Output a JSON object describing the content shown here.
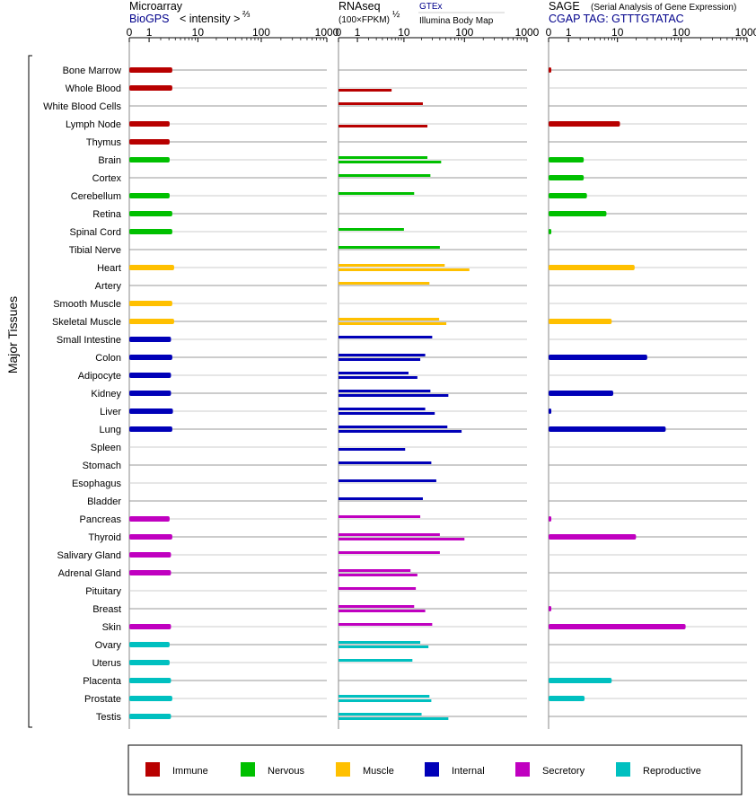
{
  "headers": {
    "microarray": "Microarray",
    "biogps": "BioGPS",
    "intensity": "< intensity >",
    "intensity_exp": "⅔",
    "rnaseq": "RNAseq",
    "fpkm": "(100×FPKM)",
    "fpkm_exp": "½",
    "gtex": "GTEx",
    "illumina": "Illumina Body Map",
    "sage": "SAGE",
    "sage_desc": "(Serial Analysis of Gene Expression)",
    "cgap": "CGAP TAG: GTTTGTATAC"
  },
  "y_axis_label": "Major Tissues",
  "axis_ticks": [
    {
      "label": "0",
      "value": 0
    },
    {
      "label": "1",
      "value": 1
    },
    {
      "label": "10",
      "value": 10
    },
    {
      "label": "100",
      "value": 100
    },
    {
      "label": "1000",
      "value": 1000
    }
  ],
  "legend": [
    {
      "key": "immune",
      "label": "Immune",
      "color": "#b80000"
    },
    {
      "key": "nervous",
      "label": "Nervous",
      "color": "#00c000"
    },
    {
      "key": "muscle",
      "label": "Muscle",
      "color": "#ffc000"
    },
    {
      "key": "internal",
      "label": "Internal",
      "color": "#0000b8"
    },
    {
      "key": "secretory",
      "label": "Secretory",
      "color": "#c000c0"
    },
    {
      "key": "reproductive",
      "label": "Reproductive",
      "color": "#00c0c0"
    }
  ],
  "chart_data": {
    "type": "bar",
    "orientation": "horizontal",
    "scale": "log (value+1)",
    "xlim": [
      0,
      1000
    ],
    "panels": [
      "Microarray (BioGPS)",
      "RNAseq (GTEx / Illumina Body Map)",
      "SAGE (CGAP)"
    ],
    "rows": [
      {
        "tissue": "Bone Marrow",
        "group": "immune",
        "microarray": 3.5,
        "gtex": null,
        "illumina": null,
        "sage": 0.1
      },
      {
        "tissue": "Whole Blood",
        "group": "immune",
        "microarray": 3.5,
        "gtex": null,
        "illumina": 6,
        "sage": 0
      },
      {
        "tissue": "White Blood Cells",
        "group": "immune",
        "microarray": null,
        "gtex": 21,
        "illumina": null,
        "sage": 0
      },
      {
        "tissue": "Lymph Node",
        "group": "immune",
        "microarray": 3.1,
        "gtex": null,
        "illumina": 25,
        "sage": 11
      },
      {
        "tissue": "Thymus",
        "group": "immune",
        "microarray": 3.1,
        "gtex": null,
        "illumina": null,
        "sage": 0
      },
      {
        "tissue": "Brain",
        "group": "nervous",
        "microarray": 3.1,
        "gtex": 25,
        "illumina": 42,
        "sage": 2.4
      },
      {
        "tissue": "Cortex",
        "group": "nervous",
        "microarray": null,
        "gtex": 28,
        "illumina": null,
        "sage": 2.4
      },
      {
        "tissue": "Cerebellum",
        "group": "nervous",
        "microarray": 3.1,
        "gtex": 15,
        "illumina": null,
        "sage": 2.8
      },
      {
        "tissue": "Retina",
        "group": "nervous",
        "microarray": 3.5,
        "gtex": null,
        "illumina": null,
        "sage": 6.5
      },
      {
        "tissue": "Spinal Cord",
        "group": "nervous",
        "microarray": 3.5,
        "gtex": 10,
        "illumina": null,
        "sage": 0.1
      },
      {
        "tissue": "Tibial Nerve",
        "group": "nervous",
        "microarray": null,
        "gtex": 40,
        "illumina": null,
        "sage": 0
      },
      {
        "tissue": "Heart",
        "group": "muscle",
        "microarray": 3.8,
        "gtex": 48,
        "illumina": 120,
        "sage": 19
      },
      {
        "tissue": "Artery",
        "group": "muscle",
        "microarray": null,
        "gtex": 27,
        "illumina": null,
        "sage": 0
      },
      {
        "tissue": "Smooth Muscle",
        "group": "muscle",
        "microarray": 3.5,
        "gtex": null,
        "illumina": null,
        "sage": 0
      },
      {
        "tissue": "Skeletal Muscle",
        "group": "muscle",
        "microarray": 3.8,
        "gtex": 39,
        "illumina": 51,
        "sage": 8
      },
      {
        "tissue": "Small Intestine",
        "group": "internal",
        "microarray": 3.3,
        "gtex": 30,
        "illumina": null,
        "sage": 0
      },
      {
        "tissue": "Colon",
        "group": "internal",
        "microarray": 3.5,
        "gtex": 23,
        "illumina": 19,
        "sage": 30
      },
      {
        "tissue": "Adipocyte",
        "group": "internal",
        "microarray": 3.3,
        "gtex": 12,
        "illumina": 17,
        "sage": 0
      },
      {
        "tissue": "Kidney",
        "group": "internal",
        "microarray": 3.3,
        "gtex": 28,
        "illumina": 55,
        "sage": 8.5
      },
      {
        "tissue": "Liver",
        "group": "internal",
        "microarray": 3.6,
        "gtex": 23,
        "illumina": 33,
        "sage": 0.1
      },
      {
        "tissue": "Lung",
        "group": "internal",
        "microarray": 3.5,
        "gtex": 53,
        "illumina": 90,
        "sage": 58
      },
      {
        "tissue": "Spleen",
        "group": "internal",
        "microarray": null,
        "gtex": null,
        "illumina": 10.5,
        "sage": 0
      },
      {
        "tissue": "Stomach",
        "group": "internal",
        "microarray": null,
        "gtex": 29,
        "illumina": null,
        "sage": 0
      },
      {
        "tissue": "Esophagus",
        "group": "internal",
        "microarray": null,
        "gtex": 35,
        "illumina": null,
        "sage": 0
      },
      {
        "tissue": "Bladder",
        "group": "internal",
        "microarray": null,
        "gtex": 21,
        "illumina": null,
        "sage": 0
      },
      {
        "tissue": "Pancreas",
        "group": "secretory",
        "microarray": 3.1,
        "gtex": 19,
        "illumina": null,
        "sage": 0.1
      },
      {
        "tissue": "Thyroid",
        "group": "secretory",
        "microarray": 3.5,
        "gtex": 40,
        "illumina": 100,
        "sage": 20
      },
      {
        "tissue": "Salivary Gland",
        "group": "secretory",
        "microarray": 3.3,
        "gtex": 40,
        "illumina": null,
        "sage": 0
      },
      {
        "tissue": "Adrenal Gland",
        "group": "secretory",
        "microarray": 3.3,
        "gtex": 13,
        "illumina": 17,
        "sage": 0
      },
      {
        "tissue": "Pituitary",
        "group": "secretory",
        "microarray": null,
        "gtex": 16,
        "illumina": null,
        "sage": 0
      },
      {
        "tissue": "Breast",
        "group": "secretory",
        "microarray": null,
        "gtex": 15,
        "illumina": 23,
        "sage": 0.1
      },
      {
        "tissue": "Skin",
        "group": "secretory",
        "microarray": 3.3,
        "gtex": 30,
        "illumina": null,
        "sage": 117
      },
      {
        "tissue": "Ovary",
        "group": "reproductive",
        "microarray": 3.1,
        "gtex": 19,
        "illumina": 26,
        "sage": 0
      },
      {
        "tissue": "Uterus",
        "group": "reproductive",
        "microarray": 3.1,
        "gtex": 14,
        "illumina": null,
        "sage": 0
      },
      {
        "tissue": "Placenta",
        "group": "reproductive",
        "microarray": 3.3,
        "gtex": null,
        "illumina": null,
        "sage": 8
      },
      {
        "tissue": "Prostate",
        "group": "reproductive",
        "microarray": 3.5,
        "gtex": 27,
        "illumina": 29,
        "sage": 2.5
      },
      {
        "tissue": "Testis",
        "group": "reproductive",
        "microarray": 3.3,
        "gtex": 20,
        "illumina": 55,
        "sage": 0
      }
    ]
  }
}
